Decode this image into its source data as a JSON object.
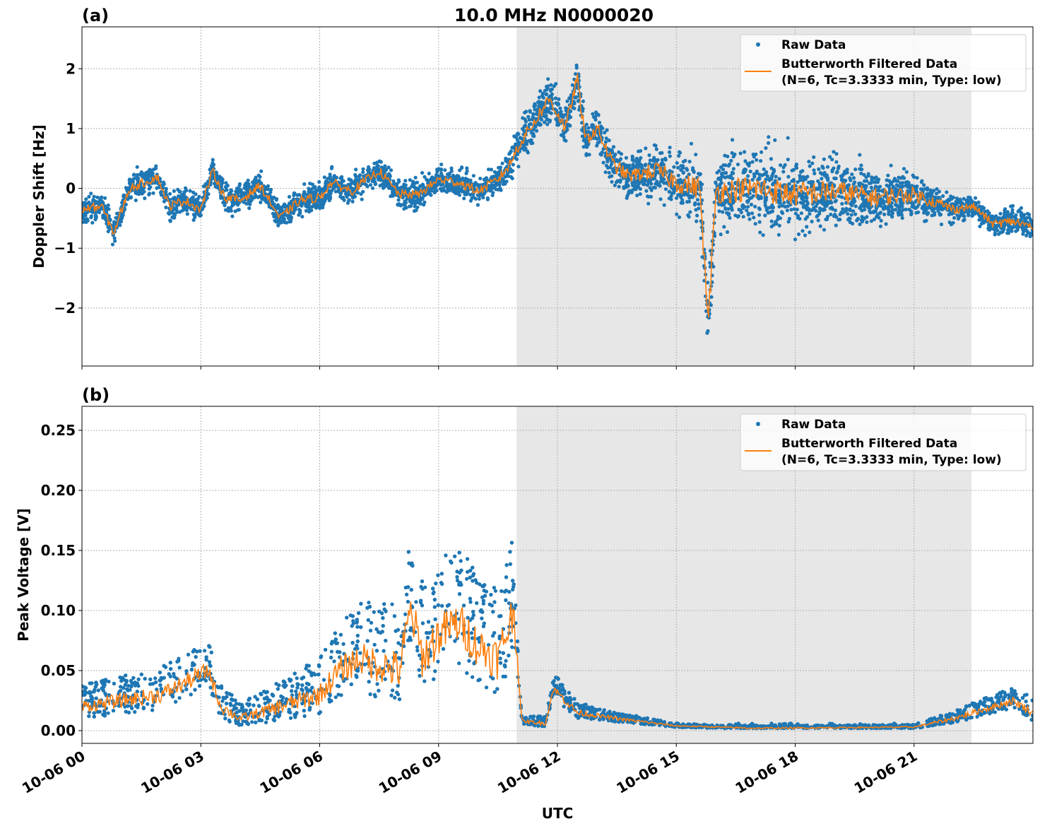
{
  "title": "10.0 MHz N0000020",
  "colors": {
    "raw": "#1f77b4",
    "filtered": "#ff7f0e",
    "shade": "#e7e7e7"
  },
  "chart_data": [
    {
      "type": "scatter+line",
      "panel_label": "(a)",
      "ylabel": "Doppler Shift [Hz]",
      "xlabel": "",
      "xlim_hours": [
        0,
        24
      ],
      "ylim": [
        -2.97,
        2.7
      ],
      "yticks": [
        {
          "v": 2,
          "label": "2"
        },
        {
          "v": 1,
          "label": "1"
        },
        {
          "v": 0,
          "label": "0"
        },
        {
          "v": -1,
          "label": "−1"
        },
        {
          "v": -2,
          "label": "−2"
        }
      ],
      "grid": true,
      "shaded_hours": [
        10.97,
        22.45
      ],
      "legend": {
        "position": "top-right",
        "raw": "Raw Data",
        "filtered_line1": "Butterworth Filtered Data",
        "filtered_line2": "(N=6, Tc=3.3333 min, Type: low)"
      },
      "filtered": [
        [
          0,
          -0.35
        ],
        [
          0.5,
          -0.3
        ],
        [
          0.8,
          -0.75
        ],
        [
          1.2,
          0.0
        ],
        [
          1.6,
          0.1
        ],
        [
          1.9,
          0.2
        ],
        [
          2.2,
          -0.3
        ],
        [
          2.6,
          -0.2
        ],
        [
          3.0,
          -0.35
        ],
        [
          3.3,
          0.3
        ],
        [
          3.6,
          -0.15
        ],
        [
          4.0,
          -0.2
        ],
        [
          4.5,
          0.05
        ],
        [
          5.0,
          -0.5
        ],
        [
          5.5,
          -0.2
        ],
        [
          6.0,
          -0.15
        ],
        [
          6.3,
          0.1
        ],
        [
          6.8,
          -0.05
        ],
        [
          7.5,
          0.3
        ],
        [
          8.0,
          -0.1
        ],
        [
          8.5,
          -0.1
        ],
        [
          9.0,
          0.15
        ],
        [
          9.5,
          0.1
        ],
        [
          10.0,
          -0.05
        ],
        [
          10.5,
          0.15
        ],
        [
          10.8,
          0.4
        ],
        [
          11.0,
          0.7
        ],
        [
          11.4,
          1.1
        ],
        [
          11.8,
          1.5
        ],
        [
          12.2,
          1.0
        ],
        [
          12.5,
          1.85
        ],
        [
          12.7,
          0.8
        ],
        [
          13.0,
          1.0
        ],
        [
          13.4,
          0.4
        ],
        [
          13.8,
          0.2
        ],
        [
          14.5,
          0.3
        ],
        [
          15.0,
          0.1
        ],
        [
          15.6,
          0.0
        ],
        [
          15.8,
          -2.3
        ],
        [
          16.0,
          -0.05
        ],
        [
          17,
          0.0
        ],
        [
          18,
          -0.1
        ],
        [
          19,
          -0.05
        ],
        [
          20,
          -0.15
        ],
        [
          21,
          -0.1
        ],
        [
          22,
          -0.35
        ],
        [
          22.5,
          -0.3
        ],
        [
          23,
          -0.6
        ],
        [
          23.5,
          -0.55
        ],
        [
          24,
          -0.65
        ]
      ],
      "raw_spread": [
        [
          0,
          0.3
        ],
        [
          10.5,
          0.3
        ],
        [
          11,
          0.45
        ],
        [
          13,
          0.45
        ],
        [
          14,
          0.5
        ],
        [
          15,
          0.7
        ],
        [
          17,
          0.9
        ],
        [
          19,
          0.8
        ],
        [
          21,
          0.5
        ],
        [
          22.4,
          0.25
        ],
        [
          24,
          0.35
        ]
      ]
    },
    {
      "type": "scatter+line",
      "panel_label": "(b)",
      "ylabel": "Peak Voltage [V]",
      "xlabel": "UTC",
      "xlim_hours": [
        0,
        24
      ],
      "ylim": [
        -0.0106,
        0.27
      ],
      "yticks": [
        {
          "v": 0.25,
          "label": "0.25"
        },
        {
          "v": 0.2,
          "label": "0.20"
        },
        {
          "v": 0.15,
          "label": "0.15"
        },
        {
          "v": 0.1,
          "label": "0.10"
        },
        {
          "v": 0.05,
          "label": "0.05"
        },
        {
          "v": 0.0,
          "label": "0.00"
        }
      ],
      "xticks": [
        {
          "h": 0,
          "label": "10-06 00"
        },
        {
          "h": 3,
          "label": "10-06 03"
        },
        {
          "h": 6,
          "label": "10-06 06"
        },
        {
          "h": 9,
          "label": "10-06 09"
        },
        {
          "h": 12,
          "label": "10-06 12"
        },
        {
          "h": 15,
          "label": "10-06 15"
        },
        {
          "h": 18,
          "label": "10-06 18"
        },
        {
          "h": 21,
          "label": "10-06 21"
        }
      ],
      "grid": true,
      "shaded_hours": [
        10.97,
        22.45
      ],
      "legend": {
        "position": "top-right",
        "raw": "Raw Data",
        "filtered_line1": "Butterworth Filtered Data",
        "filtered_line2": "(N=6, Tc=3.3333 min, Type: low)"
      },
      "filtered": [
        [
          0,
          0.02
        ],
        [
          1,
          0.025
        ],
        [
          2,
          0.03
        ],
        [
          3.2,
          0.05
        ],
        [
          3.5,
          0.02
        ],
        [
          4,
          0.01
        ],
        [
          5,
          0.02
        ],
        [
          6,
          0.03
        ],
        [
          6.5,
          0.05
        ],
        [
          7,
          0.06
        ],
        [
          8,
          0.05
        ],
        [
          8.3,
          0.1
        ],
        [
          8.6,
          0.06
        ],
        [
          9,
          0.08
        ],
        [
          9.5,
          0.09
        ],
        [
          10,
          0.07
        ],
        [
          10.5,
          0.06
        ],
        [
          10.9,
          0.1
        ],
        [
          11.1,
          0.008
        ],
        [
          11.7,
          0.006
        ],
        [
          11.9,
          0.035
        ],
        [
          12.5,
          0.015
        ],
        [
          13.5,
          0.01
        ],
        [
          15,
          0.004
        ],
        [
          17,
          0.002
        ],
        [
          21,
          0.003
        ],
        [
          22,
          0.01
        ],
        [
          22.5,
          0.015
        ],
        [
          23.5,
          0.025
        ],
        [
          24,
          0.015
        ]
      ],
      "raw_spread": [
        [
          0,
          0.018
        ],
        [
          3,
          0.025
        ],
        [
          4,
          0.012
        ],
        [
          6,
          0.03
        ],
        [
          7,
          0.045
        ],
        [
          8.3,
          0.06
        ],
        [
          10,
          0.06
        ],
        [
          10.9,
          0.06
        ],
        [
          11.05,
          0.004
        ],
        [
          11.8,
          0.006
        ],
        [
          12,
          0.012
        ],
        [
          13,
          0.006
        ],
        [
          15,
          0.002
        ],
        [
          21,
          0.002
        ],
        [
          22.4,
          0.008
        ],
        [
          24,
          0.012
        ]
      ]
    }
  ]
}
